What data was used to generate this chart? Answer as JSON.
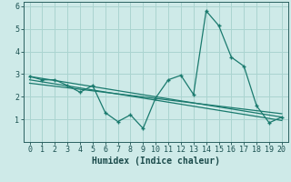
{
  "xlabel": "Humidex (Indice chaleur)",
  "xlim": [
    -0.5,
    20.5
  ],
  "ylim": [
    0,
    6.2
  ],
  "xticks": [
    0,
    1,
    2,
    3,
    4,
    5,
    6,
    7,
    8,
    9,
    10,
    11,
    12,
    13,
    14,
    15,
    16,
    17,
    18,
    19,
    20
  ],
  "yticks": [
    1,
    2,
    3,
    4,
    5,
    6
  ],
  "main_line_x": [
    0,
    1,
    2,
    3,
    4,
    5,
    6,
    7,
    8,
    9,
    10,
    11,
    12,
    13,
    14,
    15,
    16,
    17,
    18,
    19,
    20
  ],
  "main_line_y": [
    2.9,
    2.75,
    2.75,
    2.5,
    2.2,
    2.5,
    1.3,
    0.9,
    1.2,
    0.6,
    1.95,
    2.75,
    2.95,
    2.1,
    5.8,
    5.15,
    3.75,
    3.35,
    1.6,
    0.85,
    1.1
  ],
  "reg_lines": [
    {
      "x": [
        0,
        20
      ],
      "y": [
        2.9,
        1.1
      ]
    },
    {
      "x": [
        0,
        20
      ],
      "y": [
        2.75,
        0.95
      ]
    },
    {
      "x": [
        0,
        20
      ],
      "y": [
        2.6,
        1.25
      ]
    }
  ],
  "line_color": "#1a7a6e",
  "bg_color": "#ceeae8",
  "grid_color": "#aad4d0",
  "axis_color": "#2a6060",
  "tick_label_color": "#1a5050",
  "xlabel_color": "#1a4a4a",
  "font_size": 6.0,
  "xlabel_font_size": 7.0
}
